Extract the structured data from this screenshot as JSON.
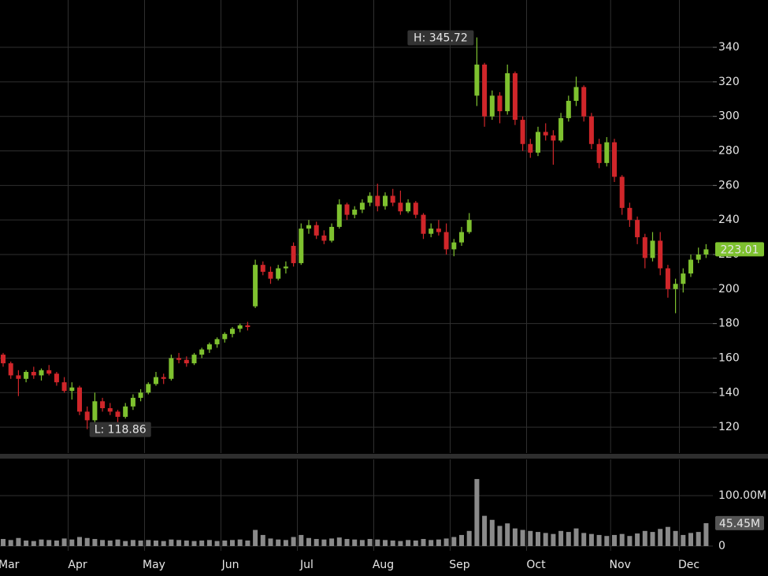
{
  "chart_data": {
    "type": "candlestick",
    "up_color": "#7ec12f",
    "down_color": "#d0262a",
    "volume_color": "#8a8a8a",
    "grid": true,
    "ylim": [
      105,
      367.4
    ],
    "yticks": [
      120,
      140,
      160,
      180,
      200,
      220,
      240,
      260,
      280,
      300,
      320,
      340
    ],
    "xticks": [
      {
        "value": 0,
        "label": "Mar"
      },
      {
        "value": 9,
        "label": "Apr"
      },
      {
        "value": 19,
        "label": "May"
      },
      {
        "value": 29,
        "label": "Jun"
      },
      {
        "value": 39,
        "label": "Jul"
      },
      {
        "value": 49,
        "label": "Aug"
      },
      {
        "value": 59,
        "label": "Sep"
      },
      {
        "value": 69,
        "label": "Oct"
      },
      {
        "value": 80,
        "label": "Nov"
      },
      {
        "value": 89,
        "label": "Dec"
      }
    ],
    "annotations": {
      "high_label": "H: 345.72",
      "low_label": "L: 118.86",
      "last_volume_label": "45.45M"
    },
    "open": [
      162,
      157,
      150,
      148,
      152,
      150,
      153,
      151,
      146,
      141,
      143,
      129,
      124,
      135,
      131,
      129,
      126,
      132,
      137,
      140,
      145,
      149,
      148,
      160,
      159,
      157,
      162,
      165,
      168,
      171,
      174,
      177,
      179,
      190,
      214,
      210,
      206,
      212,
      225,
      215,
      235,
      237,
      231,
      228,
      236,
      249,
      243,
      246,
      250,
      254,
      248,
      254,
      250,
      245,
      250,
      243,
      232,
      235,
      233,
      223,
      227,
      233,
      312,
      330,
      300,
      312,
      303,
      325,
      298,
      284,
      279,
      291,
      289,
      286,
      299,
      309,
      317,
      300,
      284,
      273,
      285,
      265,
      247,
      240,
      230,
      218,
      228,
      212,
      200,
      203,
      209,
      217,
      220
    ],
    "high": [
      163,
      158,
      153,
      153,
      155,
      154,
      156,
      152,
      149,
      146,
      144,
      132,
      140,
      137,
      134,
      130,
      134,
      139,
      142,
      146,
      152,
      151,
      162,
      163,
      161,
      163,
      166,
      169,
      172,
      175,
      178,
      180,
      181,
      217,
      216,
      213,
      214,
      216,
      227,
      238,
      240,
      239,
      234,
      238,
      252,
      250,
      248,
      252,
      256,
      261,
      256,
      258,
      257,
      252,
      251,
      244,
      238,
      240,
      238,
      229,
      236,
      244,
      345.72,
      331,
      315,
      314,
      330,
      326,
      300,
      287,
      294,
      296,
      292,
      302,
      312,
      323,
      318,
      302,
      287,
      288,
      287,
      266,
      250,
      242,
      232,
      233,
      233,
      214,
      206,
      212,
      220,
      224,
      226
    ],
    "low": [
      155,
      148,
      138,
      146,
      148,
      147,
      150,
      144,
      140,
      136,
      127,
      118.86,
      122,
      129,
      127,
      123,
      125,
      130,
      135,
      139,
      144,
      145,
      147,
      157,
      155,
      156,
      160,
      163,
      166,
      169,
      172,
      175,
      176,
      189,
      208,
      203,
      205,
      209,
      213,
      214,
      232,
      229,
      226,
      227,
      235,
      240,
      241,
      244,
      248,
      245,
      246,
      248,
      243,
      244,
      241,
      229,
      230,
      231,
      220,
      219,
      225,
      232,
      306,
      294,
      298,
      296,
      301,
      295,
      280,
      276,
      277,
      286,
      272,
      285,
      297,
      306,
      297,
      281,
      270,
      271,
      262,
      243,
      236,
      226,
      212,
      216,
      208,
      195,
      186,
      198,
      207,
      215,
      218
    ],
    "close": [
      157,
      150,
      148,
      152,
      150,
      153,
      151,
      146,
      141,
      143,
      129,
      124,
      135,
      131,
      129,
      126,
      132,
      137,
      140,
      145,
      149,
      148,
      160,
      159,
      157,
      162,
      165,
      168,
      171,
      174,
      177,
      179,
      178,
      214,
      210,
      206,
      212,
      213,
      215,
      235,
      237,
      231,
      228,
      236,
      249,
      243,
      246,
      250,
      254,
      248,
      254,
      250,
      245,
      250,
      243,
      232,
      235,
      233,
      223,
      227,
      233,
      240,
      330,
      300,
      312,
      303,
      325,
      298,
      284,
      279,
      291,
      289,
      286,
      299,
      309,
      317,
      300,
      284,
      273,
      285,
      265,
      247,
      240,
      230,
      218,
      228,
      212,
      200,
      203,
      209,
      217,
      220,
      223.01
    ],
    "volume": {
      "ylim": [
        0,
        172
      ],
      "yticks": [
        0,
        {
          "value": 100,
          "label": "100.00M"
        }
      ],
      "values": [
        14,
        12,
        16,
        11,
        10,
        13,
        12,
        11,
        15,
        13,
        18,
        16,
        14,
        12,
        11,
        13,
        10,
        12,
        11,
        12,
        11,
        10,
        13,
        12,
        11,
        10,
        11,
        12,
        10,
        11,
        12,
        13,
        11,
        32,
        22,
        15,
        13,
        12,
        18,
        22,
        16,
        14,
        13,
        15,
        17,
        14,
        13,
        12,
        14,
        13,
        12,
        11,
        10,
        12,
        11,
        14,
        12,
        13,
        15,
        18,
        22,
        30,
        133,
        60,
        52,
        40,
        45,
        35,
        32,
        30,
        28,
        26,
        24,
        30,
        28,
        35,
        26,
        24,
        22,
        20,
        22,
        24,
        20,
        25,
        30,
        28,
        34,
        38,
        30,
        22,
        26,
        28,
        45.45
      ]
    }
  }
}
